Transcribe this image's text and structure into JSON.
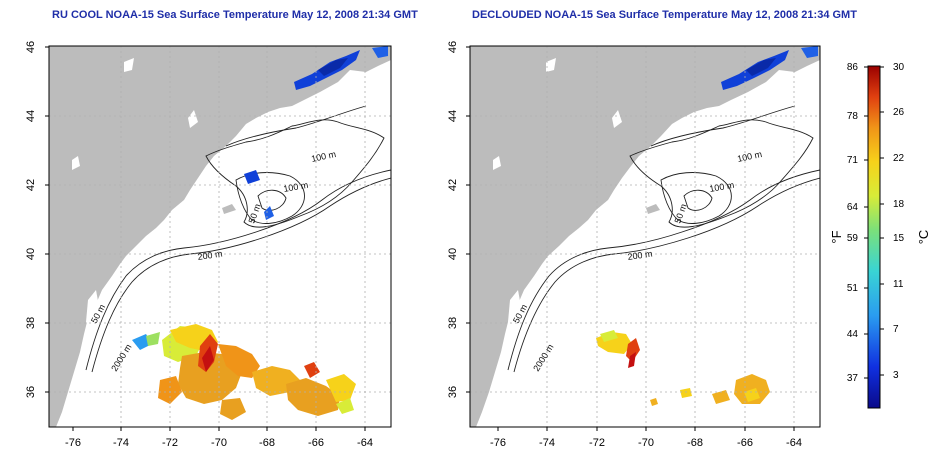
{
  "panels": [
    {
      "title": "RU COOL NOAA-15 Sea Surface Temperature May 12, 2008 21:34 GMT",
      "lon_ticks": [
        "-76",
        "-74",
        "-72",
        "-70",
        "-68",
        "-66",
        "-64"
      ],
      "lat_ticks": [
        "36",
        "38",
        "40",
        "42",
        "44",
        "46"
      ],
      "depth_labels": [
        "100 m",
        "100 m",
        "50 m",
        "200 m",
        "50 m",
        "2000 m"
      ]
    },
    {
      "title": "DECLOUDED NOAA-15 Sea Surface Temperature May 12, 2008 21:34 GMT",
      "lon_ticks": [
        "-76",
        "-74",
        "-72",
        "-70",
        "-68",
        "-66",
        "-64"
      ],
      "lat_ticks": [
        "36",
        "38",
        "40",
        "42",
        "44",
        "46"
      ],
      "depth_labels": [
        "100 m",
        "100 m",
        "50 m",
        "200 m",
        "50 m",
        "2000 m"
      ]
    }
  ],
  "colorbar": {
    "fahrenheit_ticks": [
      "86",
      "78",
      "71",
      "64",
      "59",
      "51",
      "44",
      "37"
    ],
    "celsius_ticks": [
      "30",
      "26",
      "22",
      "18",
      "15",
      "11",
      "7",
      "3"
    ],
    "label_f": "°F",
    "label_c": "°C"
  },
  "colors": {
    "land": "#bcbcbc",
    "ocean": "#ffffff",
    "contour": "#222222",
    "grid": "#b0b0b0",
    "title": "#1f2ea8"
  }
}
